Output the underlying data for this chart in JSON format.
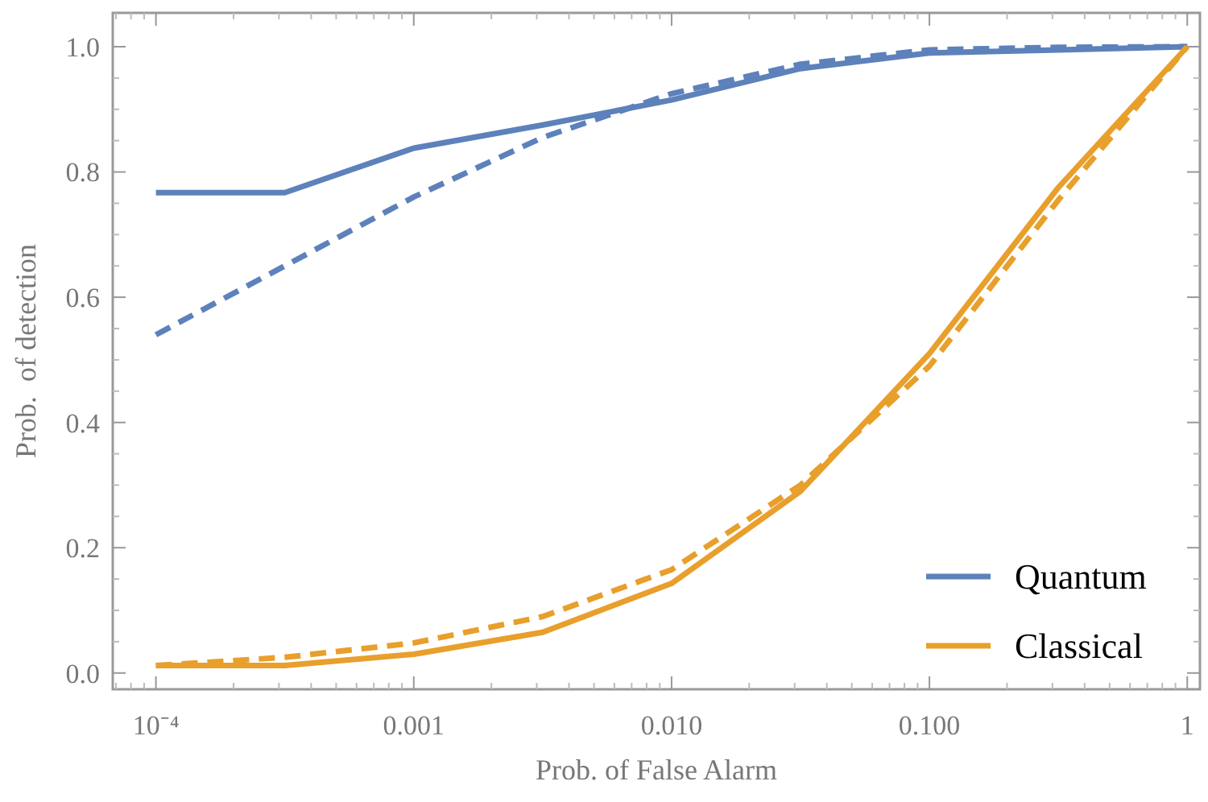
{
  "chart_data": {
    "type": "line",
    "xlabel": "Prob. of False Alarm",
    "ylabel": "Prob.  of detection",
    "x": [
      0.0001,
      0.000316,
      0.001,
      0.00316,
      0.01,
      0.0316,
      0.1,
      0.316,
      1
    ],
    "series": [
      {
        "name": "Quantum",
        "color": "#5d81bb",
        "line_style": "solid",
        "values": [
          0.767,
          0.767,
          0.838,
          0.875,
          0.915,
          0.965,
          0.99,
          0.995,
          1.0
        ]
      },
      {
        "color": "#5d81bb",
        "line_style": "dashed",
        "values": [
          0.54,
          0.65,
          0.76,
          0.855,
          0.925,
          0.972,
          0.995,
          0.999,
          1.0
        ]
      },
      {
        "name": "Classical",
        "color": "#e89f2b",
        "line_style": "solid",
        "values": [
          0.012,
          0.012,
          0.03,
          0.065,
          0.143,
          0.29,
          0.51,
          0.775,
          1.0
        ]
      },
      {
        "color": "#e89f2b",
        "line_style": "dashed",
        "values": [
          0.012,
          0.025,
          0.048,
          0.09,
          0.165,
          0.3,
          0.49,
          0.755,
          1.0
        ]
      }
    ],
    "log": "x",
    "xlim": [
      6.8e-05,
      1.12
    ],
    "ylim": [
      -0.026,
      1.054
    ],
    "xticks": [
      {
        "value": 0.0001,
        "label": "10⁻⁴"
      },
      {
        "value": 0.001,
        "label": "0.001"
      },
      {
        "value": 0.01,
        "label": "0.010"
      },
      {
        "value": 0.1,
        "label": "0.100"
      },
      1
    ],
    "yticks": [
      {
        "value": 0,
        "label": "0.0"
      },
      {
        "value": 0.2,
        "label": "0.2"
      },
      {
        "value": 0.4,
        "label": "0.4"
      },
      {
        "value": 0.6,
        "label": "0.6"
      },
      {
        "value": 0.8,
        "label": "0.8"
      },
      {
        "value": 1,
        "label": "1.0"
      }
    ],
    "grid": false,
    "legend": "bottom right"
  }
}
